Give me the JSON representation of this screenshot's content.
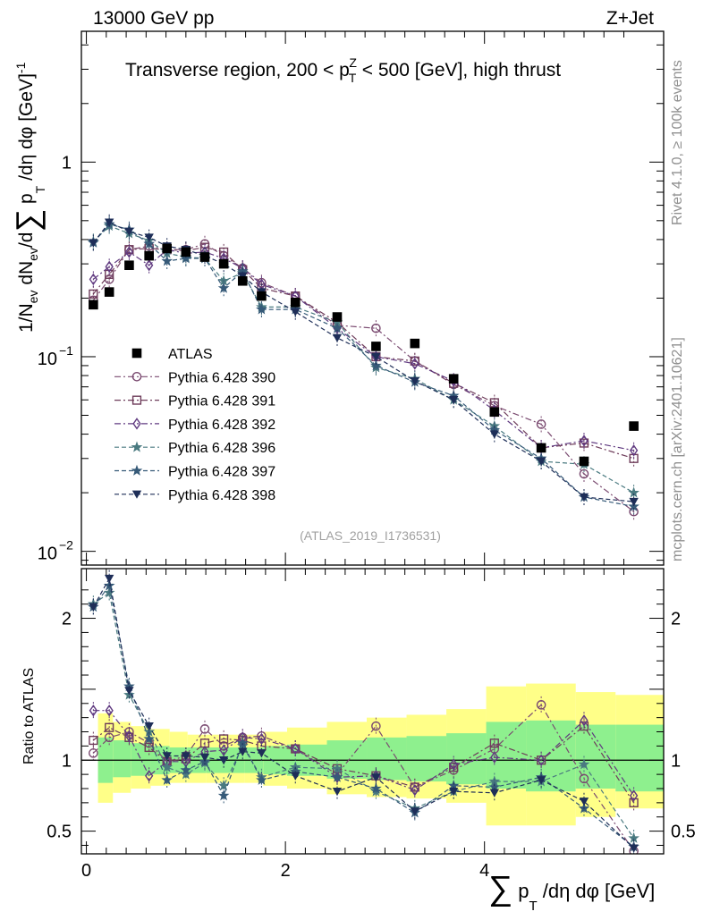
{
  "header": {
    "energy": "13000 GeV pp",
    "process": "Z+Jet"
  },
  "side": {
    "rivet": "Rivet 4.1.0, ≥ 100k events",
    "mcplots": "mcplots.cern.ch [arXiv:2401.10621]"
  },
  "colors": {
    "data": "#000000",
    "p390": "#7a4a70",
    "p391": "#6e3c5a",
    "p392": "#603a80",
    "p396": "#4a7a80",
    "p397": "#365a78",
    "p398": "#1e2e58",
    "band_inner": "#8ef08e",
    "band_outer": "#ffff88"
  },
  "chart_data": [
    {
      "id": "main",
      "type": "scatter",
      "title": "Transverse region, 200 < pTZ < 500 [GeV], high thrust",
      "title_parts": {
        "lead": "Transverse region, 200 < p",
        "sup": "Z",
        "sub": "T",
        "tail": " < 500 [GeV], high thrust"
      },
      "ylabel": "1/Nev dNev/d∑pT/dη dφ [GeV]-1",
      "ylabel_parts": {
        "a": "1/N",
        "a_sub": "ev",
        "b": " dN",
        "b_sub": "ev",
        "c": "/d",
        "sigma": "∑",
        "d": " p",
        "d_sub": "T",
        "e": " /dη dφ  [GeV]",
        "e_sup": "-1"
      },
      "yscale": "log",
      "ylim": [
        0.0085,
        4.7
      ],
      "xlim": [
        -0.05,
        5.8
      ],
      "y_ticks": [
        {
          "v": 1,
          "label": "1"
        },
        {
          "v": 0.1,
          "base": "10",
          "exp": "−1"
        },
        {
          "v": 0.01,
          "base": "10",
          "exp": "−2"
        }
      ],
      "watermark": "(ATLAS_2019_I1736531)",
      "legend": [
        {
          "key": "data",
          "label": "ATLAS"
        },
        {
          "key": "p390",
          "label": "Pythia 6.428 390"
        },
        {
          "key": "p391",
          "label": "Pythia 6.428 391"
        },
        {
          "key": "p392",
          "label": "Pythia 6.428 392"
        },
        {
          "key": "p396",
          "label": "Pythia 6.428 396"
        },
        {
          "key": "p397",
          "label": "Pythia 6.428 397"
        },
        {
          "key": "p398",
          "label": "Pythia 6.428 398"
        }
      ],
      "x": [
        0.07,
        0.23,
        0.43,
        0.63,
        0.81,
        1.0,
        1.19,
        1.38,
        1.57,
        1.76,
        2.1,
        2.52,
        2.91,
        3.3,
        3.69,
        4.1,
        4.57,
        5.0,
        5.5
      ],
      "data": [
        0.185,
        0.215,
        0.295,
        0.33,
        0.36,
        0.345,
        0.325,
        0.3,
        0.245,
        0.205,
        0.19,
        0.16,
        0.113,
        0.117,
        0.077,
        0.052,
        0.034,
        0.029,
        0.044
      ],
      "series": [
        {
          "key": "p390",
          "marker": "circle",
          "dash": "7,3,2,3",
          "values": [
            0.195,
            0.25,
            0.355,
            0.37,
            0.355,
            0.355,
            0.38,
            0.33,
            0.285,
            0.24,
            0.205,
            0.145,
            0.14,
            0.095,
            0.072,
            0.056,
            0.045,
            0.025,
            0.016
          ]
        },
        {
          "key": "p391",
          "marker": "square",
          "dash": "7,3,2,3",
          "values": [
            0.21,
            0.265,
            0.355,
            0.36,
            0.355,
            0.35,
            0.365,
            0.345,
            0.28,
            0.225,
            0.205,
            0.15,
            0.1,
            0.095,
            0.073,
            0.058,
            0.034,
            0.036,
            0.03
          ]
        },
        {
          "key": "p392",
          "marker": "diamond",
          "dash": "7,3,2,3",
          "values": [
            0.25,
            0.29,
            0.345,
            0.295,
            0.355,
            0.34,
            0.345,
            0.32,
            0.285,
            0.235,
            0.205,
            0.14,
            0.1,
            0.092,
            0.075,
            0.053,
            0.034,
            0.037,
            0.033
          ]
        },
        {
          "key": "p396",
          "marker": "star",
          "dash": "5,3",
          "values": [
            0.39,
            0.47,
            0.43,
            0.395,
            0.34,
            0.325,
            0.32,
            0.245,
            0.27,
            0.18,
            0.18,
            0.15,
            0.088,
            0.077,
            0.06,
            0.044,
            0.029,
            0.028,
            0.02
          ]
        },
        {
          "key": "p397",
          "marker": "star",
          "dash": "5,3",
          "values": [
            0.385,
            0.48,
            0.45,
            0.38,
            0.31,
            0.32,
            0.32,
            0.225,
            0.275,
            0.175,
            0.175,
            0.14,
            0.09,
            0.074,
            0.063,
            0.042,
            0.03,
            0.019,
            0.017
          ]
        },
        {
          "key": "p398",
          "marker": "triangle-down",
          "dash": "5,3",
          "values": [
            0.385,
            0.49,
            0.44,
            0.41,
            0.37,
            0.355,
            0.33,
            0.3,
            0.26,
            0.215,
            0.17,
            0.125,
            0.1,
            0.075,
            0.06,
            0.04,
            0.029,
            0.019,
            0.018
          ]
        }
      ]
    },
    {
      "id": "ratio",
      "type": "scatter",
      "ylabel": "Ratio to ATLAS",
      "xlabel": "∑pT/dη dφ [GeV]",
      "xlabel_parts": {
        "sigma": "∑",
        "p": " p",
        "sub": "T",
        "rest": " /dη dφ [GeV]"
      },
      "ylim": [
        0.34,
        2.35
      ],
      "y_ticks": [
        {
          "v": 2,
          "label": "2"
        },
        {
          "v": 1,
          "label": "1"
        },
        {
          "v": 0.5,
          "label": "0.5"
        }
      ],
      "x_ticks": [
        {
          "v": 0,
          "label": "0"
        },
        {
          "v": 2,
          "label": "2"
        },
        {
          "v": 4,
          "label": "4"
        }
      ],
      "bins": [
        [
          0,
          0.15
        ],
        [
          0.15,
          0.33
        ],
        [
          0.33,
          0.53
        ],
        [
          0.53,
          0.72
        ],
        [
          0.72,
          0.9
        ],
        [
          0.9,
          1.09
        ],
        [
          1.09,
          1.28
        ],
        [
          1.28,
          1.47
        ],
        [
          1.47,
          1.66
        ],
        [
          1.66,
          1.9
        ],
        [
          1.9,
          2.3
        ],
        [
          2.3,
          2.7
        ],
        [
          2.7,
          3.1
        ],
        [
          3.1,
          3.5
        ],
        [
          3.5,
          3.9
        ],
        [
          3.9,
          4.3
        ],
        [
          4.3,
          4.8
        ],
        [
          4.8,
          5.2
        ],
        [
          5.2,
          5.7
        ]
      ],
      "band_inner": [
        [
          0.84,
          1.16
        ],
        [
          0.88,
          1.14
        ],
        [
          0.89,
          1.12
        ],
        [
          0.9,
          1.1
        ],
        [
          0.91,
          1.09
        ],
        [
          0.91,
          1.09
        ],
        [
          0.91,
          1.09
        ],
        [
          0.91,
          1.09
        ],
        [
          0.91,
          1.09
        ],
        [
          0.9,
          1.1
        ],
        [
          0.89,
          1.11
        ],
        [
          0.87,
          1.14
        ],
        [
          0.86,
          1.16
        ],
        [
          0.85,
          1.17
        ],
        [
          0.83,
          1.19
        ],
        [
          0.8,
          1.27
        ],
        [
          0.78,
          1.28
        ],
        [
          0.8,
          1.25
        ],
        [
          0.78,
          1.25
        ]
      ],
      "band_outer": [
        [
          0.7,
          1.33
        ],
        [
          0.77,
          1.27
        ],
        [
          0.8,
          1.24
        ],
        [
          0.82,
          1.22
        ],
        [
          0.84,
          1.2
        ],
        [
          0.84,
          1.18
        ],
        [
          0.84,
          1.18
        ],
        [
          0.84,
          1.18
        ],
        [
          0.84,
          1.18
        ],
        [
          0.82,
          1.2
        ],
        [
          0.8,
          1.23
        ],
        [
          0.76,
          1.27
        ],
        [
          0.74,
          1.3
        ],
        [
          0.73,
          1.32
        ],
        [
          0.7,
          1.36
        ],
        [
          0.54,
          1.52
        ],
        [
          0.54,
          1.54
        ],
        [
          0.6,
          1.48
        ],
        [
          0.66,
          1.46
        ]
      ],
      "x": [
        0.07,
        0.23,
        0.43,
        0.63,
        0.81,
        1.0,
        1.19,
        1.38,
        1.57,
        1.76,
        2.1,
        2.52,
        2.91,
        3.3,
        3.69,
        4.1,
        4.57,
        5.0,
        5.5
      ],
      "series": [
        {
          "key": "p390",
          "marker": "circle",
          "dash": "7,3,2,3",
          "values": [
            1.05,
            1.16,
            1.2,
            1.12,
            0.99,
            1.03,
            1.22,
            1.1,
            1.16,
            1.17,
            1.08,
            0.9,
            1.24,
            0.81,
            0.93,
            1.08,
            1.39,
            0.87,
            0.36
          ]
        },
        {
          "key": "p391",
          "marker": "square",
          "dash": "7,3,2,3",
          "values": [
            1.14,
            1.23,
            1.16,
            1.09,
            0.99,
            1.01,
            1.12,
            1.15,
            1.14,
            1.1,
            1.08,
            0.94,
            0.89,
            0.81,
            0.95,
            1.12,
            1.0,
            1.24,
            0.7
          ]
        },
        {
          "key": "p392",
          "marker": "diamond",
          "dash": "7,3,2,3",
          "values": [
            1.35,
            1.35,
            1.17,
            0.89,
            0.99,
            0.99,
            1.06,
            1.07,
            1.16,
            1.15,
            1.08,
            0.88,
            0.89,
            0.79,
            0.97,
            1.02,
            1.0,
            1.28,
            0.75
          ]
        },
        {
          "key": "p396",
          "marker": "star",
          "dash": "5,3",
          "values": [
            2.1,
            2.18,
            1.46,
            1.2,
            0.95,
            0.9,
            0.98,
            0.82,
            1.1,
            0.88,
            0.95,
            0.94,
            0.78,
            0.66,
            0.78,
            0.85,
            0.85,
            0.97,
            0.45
          ]
        },
        {
          "key": "p397",
          "marker": "star",
          "dash": "5,3",
          "values": [
            2.08,
            2.23,
            1.52,
            1.15,
            0.86,
            0.93,
            0.99,
            0.75,
            1.12,
            0.86,
            0.92,
            0.88,
            0.8,
            0.63,
            0.82,
            0.81,
            0.88,
            0.66,
            0.39
          ]
        },
        {
          "key": "p398",
          "marker": "triangle-down",
          "dash": "5,3",
          "values": [
            2.08,
            2.28,
            1.49,
            1.24,
            1.03,
            1.03,
            1.02,
            1.0,
            1.06,
            1.05,
            0.89,
            0.78,
            0.88,
            0.64,
            0.78,
            0.77,
            0.86,
            0.71,
            0.38
          ]
        }
      ]
    }
  ]
}
